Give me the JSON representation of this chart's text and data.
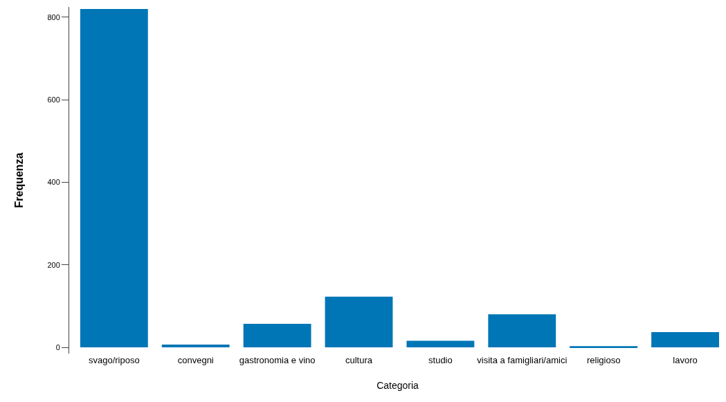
{
  "chart_data": {
    "type": "bar",
    "xlabel": "Categoria",
    "ylabel": "Frequenza",
    "categories": [
      "svago/riposo",
      "convegni",
      "gastronomia e vino",
      "cultura",
      "studio",
      "visita a famigliari/amici",
      "religioso",
      "lavoro"
    ],
    "values": [
      820,
      7,
      57,
      123,
      16,
      80,
      3,
      37
    ],
    "color": "#0076b6",
    "ylim": [
      -15,
      825
    ],
    "yticks": [
      0,
      200,
      400,
      600,
      800
    ]
  }
}
